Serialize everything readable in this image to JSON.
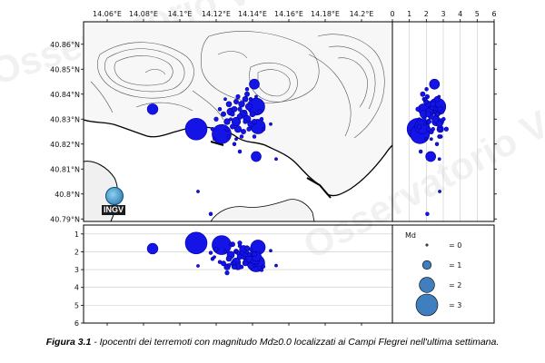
{
  "chart_data": [
    {
      "type": "scatter",
      "panel": "map",
      "x_ticks": [
        "14.06°E",
        "14.08°E",
        "14.1°E",
        "14.12°E",
        "14.14°E",
        "14.16°E",
        "14.18°E",
        "14.2°E"
      ],
      "x_tick_values": [
        14.06,
        14.08,
        14.1,
        14.12,
        14.14,
        14.16,
        14.18,
        14.2
      ],
      "y_ticks": [
        "40.86°N",
        "40.85°N",
        "40.84°N",
        "40.83°N",
        "40.82°N",
        "40.81°N",
        "40.8°N",
        "40.79°N"
      ],
      "y_tick_values": [
        40.86,
        40.85,
        40.84,
        40.83,
        40.82,
        40.81,
        40.8,
        40.79
      ],
      "xlim": [
        14.047,
        14.217
      ],
      "ylim": [
        40.789,
        40.869
      ],
      "events": [
        {
          "lon": 14.109,
          "lat": 40.826,
          "md": 3.0
        },
        {
          "lon": 14.123,
          "lat": 40.824,
          "md": 2.6
        },
        {
          "lon": 14.142,
          "lat": 40.835,
          "md": 2.3
        },
        {
          "lon": 14.143,
          "lat": 40.827,
          "md": 1.9
        },
        {
          "lon": 14.141,
          "lat": 40.844,
          "md": 1.2
        },
        {
          "lon": 14.085,
          "lat": 40.834,
          "md": 1.3
        },
        {
          "lon": 14.142,
          "lat": 40.815,
          "md": 1.2
        },
        {
          "lon": 14.131,
          "lat": 40.829,
          "md": 1.0
        },
        {
          "lon": 14.135,
          "lat": 40.832,
          "md": 0.9
        },
        {
          "lon": 14.137,
          "lat": 40.83,
          "md": 0.8
        },
        {
          "lon": 14.128,
          "lat": 40.833,
          "md": 0.8
        },
        {
          "lon": 14.132,
          "lat": 40.826,
          "md": 0.7
        },
        {
          "lon": 14.138,
          "lat": 40.835,
          "md": 0.7
        },
        {
          "lon": 14.126,
          "lat": 40.829,
          "md": 0.6
        },
        {
          "lon": 14.134,
          "lat": 40.836,
          "md": 0.6
        },
        {
          "lon": 14.139,
          "lat": 40.828,
          "md": 0.6
        },
        {
          "lon": 14.13,
          "lat": 40.834,
          "md": 0.5
        },
        {
          "lon": 14.136,
          "lat": 40.838,
          "md": 0.5
        },
        {
          "lon": 14.127,
          "lat": 40.836,
          "md": 0.5
        },
        {
          "lon": 14.133,
          "lat": 40.831,
          "md": 0.5
        },
        {
          "lon": 14.14,
          "lat": 40.832,
          "md": 0.5
        },
        {
          "lon": 14.124,
          "lat": 40.832,
          "md": 0.4
        },
        {
          "lon": 14.129,
          "lat": 40.827,
          "md": 0.4
        },
        {
          "lon": 14.135,
          "lat": 40.825,
          "md": 0.4
        },
        {
          "lon": 14.137,
          "lat": 40.84,
          "md": 0.4
        },
        {
          "lon": 14.131,
          "lat": 40.837,
          "md": 0.4
        },
        {
          "lon": 14.141,
          "lat": 40.829,
          "md": 0.4
        },
        {
          "lon": 14.126,
          "lat": 40.826,
          "md": 0.3
        },
        {
          "lon": 14.133,
          "lat": 40.834,
          "md": 0.3
        },
        {
          "lon": 14.138,
          "lat": 40.826,
          "md": 0.3
        },
        {
          "lon": 14.12,
          "lat": 40.83,
          "md": 0.3
        },
        {
          "lon": 14.144,
          "lat": 40.833,
          "md": 0.3
        },
        {
          "lon": 14.132,
          "lat": 40.839,
          "md": 0.3
        },
        {
          "lon": 14.129,
          "lat": 40.832,
          "md": 0.3
        },
        {
          "lon": 14.136,
          "lat": 40.829,
          "md": 0.3
        },
        {
          "lon": 14.118,
          "lat": 40.826,
          "md": 0.2
        },
        {
          "lon": 14.127,
          "lat": 40.823,
          "md": 0.2
        },
        {
          "lon": 14.134,
          "lat": 40.823,
          "md": 0.2
        },
        {
          "lon": 14.139,
          "lat": 40.838,
          "md": 0.2
        },
        {
          "lon": 14.145,
          "lat": 40.83,
          "md": 0.2
        },
        {
          "lon": 14.13,
          "lat": 40.82,
          "md": 0.2
        },
        {
          "lon": 14.137,
          "lat": 40.842,
          "md": 0.2
        },
        {
          "lon": 14.122,
          "lat": 40.834,
          "md": 0.2
        },
        {
          "lon": 14.141,
          "lat": 40.823,
          "md": 0.2
        },
        {
          "lon": 14.133,
          "lat": 40.817,
          "md": 0.2
        },
        {
          "lon": 14.146,
          "lat": 40.826,
          "md": 0.2
        },
        {
          "lon": 14.125,
          "lat": 40.838,
          "md": 0.1
        },
        {
          "lon": 14.131,
          "lat": 40.822,
          "md": 0.1
        },
        {
          "lon": 14.136,
          "lat": 40.833,
          "md": 0.1
        },
        {
          "lon": 14.128,
          "lat": 40.83,
          "md": 0.1
        },
        {
          "lon": 14.142,
          "lat": 40.839,
          "md": 0.1
        },
        {
          "lon": 14.119,
          "lat": 40.822,
          "md": 0.1
        },
        {
          "lon": 14.15,
          "lat": 40.828,
          "md": 0.1
        },
        {
          "lon": 14.11,
          "lat": 40.801,
          "md": 0.1
        },
        {
          "lon": 14.117,
          "lat": 40.792,
          "md": 0.2
        },
        {
          "lon": 14.153,
          "lat": 40.814,
          "md": 0.1
        }
      ]
    },
    {
      "type": "scatter",
      "panel": "depth-latitude",
      "x_ticks": [
        "0",
        "1",
        "2",
        "3",
        "4",
        "5",
        "6"
      ],
      "x_tick_values": [
        0,
        1,
        2,
        3,
        4,
        5,
        6
      ],
      "xlim": [
        0,
        6
      ],
      "ylim": [
        40.789,
        40.869
      ]
    },
    {
      "type": "scatter",
      "panel": "longitude-depth",
      "y_ticks": [
        "1",
        "2",
        "3",
        "4",
        "5",
        "6"
      ],
      "y_tick_values": [
        1,
        2,
        3,
        4,
        5,
        6
      ],
      "ylim": [
        0.5,
        6
      ]
    }
  ],
  "legend": {
    "title": "Md",
    "entries": [
      {
        "label": "= 0",
        "md": 0
      },
      {
        "label": "= 1",
        "md": 1
      },
      {
        "label": "= 2",
        "md": 2
      },
      {
        "label": "= 3",
        "md": 3
      }
    ]
  },
  "logo": {
    "text": "INGV"
  },
  "caption": {
    "label": "Figura 3.1",
    "text": " - Ipocentri dei terremoti con magnitudo Md≥0.0 localizzati ai Campi Flegrei nell'ultima settimana."
  },
  "watermark": {
    "text": "Osservatorio Vesuviano"
  },
  "colors": {
    "event_fill": "#1414e6",
    "event_stroke": "#0000a0",
    "legend_fill": "#3f7fbf",
    "grid": "#c8c8c8",
    "land_contour": "#555555"
  }
}
